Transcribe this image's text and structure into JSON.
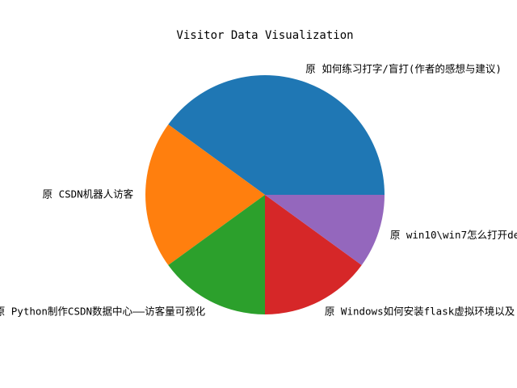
{
  "chart_data": {
    "type": "pie",
    "title": "Visitor Data Visualization",
    "start_angle": 0,
    "direction": "counterclockwise",
    "slices": [
      {
        "label": "原 如何练习打字/盲打(作者的感想与建议)",
        "value": 40,
        "color": "#1f77b4"
      },
      {
        "label": "原 CSDN机器人访客",
        "value": 20,
        "color": "#ff7f0e"
      },
      {
        "label": "原 Python制作CSDN数据中心——访客量可视化",
        "value": 15,
        "color": "#2ca02c"
      },
      {
        "label": "原 Windows如何安装flask虚拟环境以及",
        "value": 15,
        "color": "#d62728"
      },
      {
        "label": "原 win10\\win7怎么打开de",
        "value": 10,
        "color": "#9467bd"
      }
    ]
  }
}
